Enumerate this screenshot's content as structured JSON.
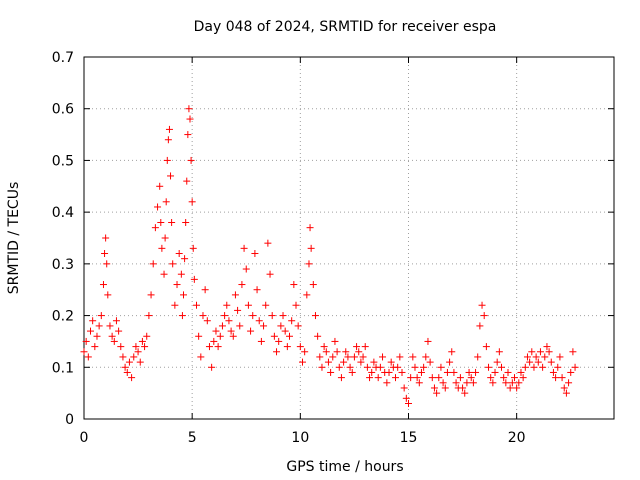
{
  "chart_data": {
    "type": "scatter",
    "title": "Day 048 of 2024, SRMTID for receiver espa",
    "xlabel": "GPS time / hours",
    "ylabel": "SRMTID / TECUs",
    "xlim": [
      0,
      24.5
    ],
    "ylim": [
      0,
      0.7
    ],
    "xticks": [
      0,
      5,
      10,
      15,
      20
    ],
    "yticks": [
      0,
      0.1,
      0.2,
      0.3,
      0.4,
      0.5,
      0.6,
      0.7
    ],
    "xtick_labels": [
      "0",
      "5",
      "10",
      "15",
      "20"
    ],
    "ytick_labels": [
      "0",
      "0.1",
      "0.2",
      "0.3",
      "0.4",
      "0.5",
      "0.6",
      "0.7"
    ],
    "grid": true,
    "marker": "plus",
    "color": "#ff0000",
    "series": [
      {
        "name": "SRMTID",
        "points": [
          [
            0.0,
            0.13
          ],
          [
            0.1,
            0.15
          ],
          [
            0.2,
            0.12
          ],
          [
            0.3,
            0.17
          ],
          [
            0.4,
            0.19
          ],
          [
            0.5,
            0.14
          ],
          [
            0.6,
            0.16
          ],
          [
            0.7,
            0.18
          ],
          [
            0.8,
            0.2
          ],
          [
            0.9,
            0.26
          ],
          [
            0.95,
            0.32
          ],
          [
            1.0,
            0.35
          ],
          [
            1.05,
            0.3
          ],
          [
            1.1,
            0.24
          ],
          [
            1.2,
            0.18
          ],
          [
            1.3,
            0.16
          ],
          [
            1.4,
            0.15
          ],
          [
            1.5,
            0.19
          ],
          [
            1.6,
            0.17
          ],
          [
            1.7,
            0.14
          ],
          [
            1.8,
            0.12
          ],
          [
            1.9,
            0.1
          ],
          [
            2.0,
            0.09
          ],
          [
            2.1,
            0.11
          ],
          [
            2.2,
            0.08
          ],
          [
            2.3,
            0.12
          ],
          [
            2.4,
            0.14
          ],
          [
            2.5,
            0.13
          ],
          [
            2.6,
            0.11
          ],
          [
            2.7,
            0.15
          ],
          [
            2.8,
            0.14
          ],
          [
            2.9,
            0.16
          ],
          [
            3.0,
            0.2
          ],
          [
            3.1,
            0.24
          ],
          [
            3.2,
            0.3
          ],
          [
            3.3,
            0.37
          ],
          [
            3.4,
            0.41
          ],
          [
            3.5,
            0.45
          ],
          [
            3.55,
            0.38
          ],
          [
            3.6,
            0.33
          ],
          [
            3.7,
            0.28
          ],
          [
            3.75,
            0.35
          ],
          [
            3.8,
            0.42
          ],
          [
            3.85,
            0.5
          ],
          [
            3.9,
            0.54
          ],
          [
            3.95,
            0.56
          ],
          [
            4.0,
            0.47
          ],
          [
            4.05,
            0.38
          ],
          [
            4.1,
            0.3
          ],
          [
            4.2,
            0.22
          ],
          [
            4.3,
            0.26
          ],
          [
            4.4,
            0.32
          ],
          [
            4.5,
            0.28
          ],
          [
            4.55,
            0.2
          ],
          [
            4.6,
            0.24
          ],
          [
            4.65,
            0.31
          ],
          [
            4.7,
            0.38
          ],
          [
            4.75,
            0.46
          ],
          [
            4.8,
            0.55
          ],
          [
            4.85,
            0.6
          ],
          [
            4.9,
            0.58
          ],
          [
            4.95,
            0.5
          ],
          [
            5.0,
            0.42
          ],
          [
            5.05,
            0.33
          ],
          [
            5.1,
            0.27
          ],
          [
            5.2,
            0.22
          ],
          [
            5.3,
            0.16
          ],
          [
            5.4,
            0.12
          ],
          [
            5.5,
            0.2
          ],
          [
            5.6,
            0.25
          ],
          [
            5.7,
            0.19
          ],
          [
            5.8,
            0.14
          ],
          [
            5.9,
            0.1
          ],
          [
            6.0,
            0.15
          ],
          [
            6.1,
            0.17
          ],
          [
            6.2,
            0.14
          ],
          [
            6.3,
            0.16
          ],
          [
            6.4,
            0.18
          ],
          [
            6.5,
            0.2
          ],
          [
            6.6,
            0.22
          ],
          [
            6.7,
            0.19
          ],
          [
            6.8,
            0.17
          ],
          [
            6.9,
            0.16
          ],
          [
            7.0,
            0.24
          ],
          [
            7.1,
            0.21
          ],
          [
            7.2,
            0.18
          ],
          [
            7.3,
            0.26
          ],
          [
            7.4,
            0.33
          ],
          [
            7.5,
            0.29
          ],
          [
            7.6,
            0.22
          ],
          [
            7.7,
            0.17
          ],
          [
            7.8,
            0.2
          ],
          [
            7.9,
            0.32
          ],
          [
            8.0,
            0.25
          ],
          [
            8.1,
            0.19
          ],
          [
            8.2,
            0.15
          ],
          [
            8.3,
            0.18
          ],
          [
            8.4,
            0.22
          ],
          [
            8.5,
            0.34
          ],
          [
            8.6,
            0.28
          ],
          [
            8.7,
            0.2
          ],
          [
            8.8,
            0.16
          ],
          [
            8.9,
            0.13
          ],
          [
            9.0,
            0.15
          ],
          [
            9.1,
            0.18
          ],
          [
            9.2,
            0.2
          ],
          [
            9.3,
            0.17
          ],
          [
            9.4,
            0.14
          ],
          [
            9.5,
            0.16
          ],
          [
            9.6,
            0.19
          ],
          [
            9.7,
            0.26
          ],
          [
            9.8,
            0.22
          ],
          [
            9.9,
            0.18
          ],
          [
            10.0,
            0.14
          ],
          [
            10.1,
            0.11
          ],
          [
            10.2,
            0.13
          ],
          [
            10.3,
            0.24
          ],
          [
            10.4,
            0.3
          ],
          [
            10.45,
            0.37
          ],
          [
            10.5,
            0.33
          ],
          [
            10.6,
            0.26
          ],
          [
            10.7,
            0.2
          ],
          [
            10.8,
            0.16
          ],
          [
            10.9,
            0.12
          ],
          [
            11.0,
            0.1
          ],
          [
            11.1,
            0.14
          ],
          [
            11.2,
            0.13
          ],
          [
            11.3,
            0.11
          ],
          [
            11.4,
            0.09
          ],
          [
            11.5,
            0.12
          ],
          [
            11.6,
            0.15
          ],
          [
            11.7,
            0.13
          ],
          [
            11.8,
            0.1
          ],
          [
            11.9,
            0.08
          ],
          [
            12.0,
            0.11
          ],
          [
            12.1,
            0.13
          ],
          [
            12.2,
            0.12
          ],
          [
            12.3,
            0.1
          ],
          [
            12.4,
            0.09
          ],
          [
            12.5,
            0.12
          ],
          [
            12.6,
            0.14
          ],
          [
            12.7,
            0.13
          ],
          [
            12.8,
            0.11
          ],
          [
            12.9,
            0.12
          ],
          [
            13.0,
            0.14
          ],
          [
            13.1,
            0.1
          ],
          [
            13.2,
            0.08
          ],
          [
            13.3,
            0.09
          ],
          [
            13.4,
            0.11
          ],
          [
            13.5,
            0.1
          ],
          [
            13.6,
            0.08
          ],
          [
            13.7,
            0.1
          ],
          [
            13.8,
            0.12
          ],
          [
            13.9,
            0.09
          ],
          [
            14.0,
            0.07
          ],
          [
            14.1,
            0.09
          ],
          [
            14.2,
            0.11
          ],
          [
            14.3,
            0.1
          ],
          [
            14.4,
            0.08
          ],
          [
            14.5,
            0.1
          ],
          [
            14.6,
            0.12
          ],
          [
            14.7,
            0.09
          ],
          [
            14.8,
            0.06
          ],
          [
            14.9,
            0.04
          ],
          [
            15.0,
            0.03
          ],
          [
            15.1,
            0.08
          ],
          [
            15.2,
            0.12
          ],
          [
            15.3,
            0.1
          ],
          [
            15.4,
            0.08
          ],
          [
            15.5,
            0.07
          ],
          [
            15.6,
            0.09
          ],
          [
            15.7,
            0.1
          ],
          [
            15.8,
            0.12
          ],
          [
            15.9,
            0.15
          ],
          [
            16.0,
            0.11
          ],
          [
            16.1,
            0.08
          ],
          [
            16.2,
            0.06
          ],
          [
            16.3,
            0.05
          ],
          [
            16.4,
            0.08
          ],
          [
            16.5,
            0.1
          ],
          [
            16.6,
            0.07
          ],
          [
            16.7,
            0.06
          ],
          [
            16.8,
            0.09
          ],
          [
            16.9,
            0.11
          ],
          [
            17.0,
            0.13
          ],
          [
            17.1,
            0.09
          ],
          [
            17.2,
            0.07
          ],
          [
            17.3,
            0.06
          ],
          [
            17.4,
            0.08
          ],
          [
            17.5,
            0.06
          ],
          [
            17.6,
            0.05
          ],
          [
            17.7,
            0.07
          ],
          [
            17.8,
            0.09
          ],
          [
            17.9,
            0.08
          ],
          [
            18.0,
            0.07
          ],
          [
            18.1,
            0.09
          ],
          [
            18.2,
            0.12
          ],
          [
            18.3,
            0.18
          ],
          [
            18.4,
            0.22
          ],
          [
            18.5,
            0.2
          ],
          [
            18.6,
            0.14
          ],
          [
            18.7,
            0.1
          ],
          [
            18.8,
            0.08
          ],
          [
            18.9,
            0.07
          ],
          [
            19.0,
            0.09
          ],
          [
            19.1,
            0.11
          ],
          [
            19.2,
            0.13
          ],
          [
            19.3,
            0.1
          ],
          [
            19.4,
            0.08
          ],
          [
            19.5,
            0.07
          ],
          [
            19.6,
            0.09
          ],
          [
            19.7,
            0.06
          ],
          [
            19.8,
            0.07
          ],
          [
            19.9,
            0.08
          ],
          [
            20.0,
            0.06
          ],
          [
            20.1,
            0.07
          ],
          [
            20.2,
            0.09
          ],
          [
            20.3,
            0.08
          ],
          [
            20.4,
            0.1
          ],
          [
            20.5,
            0.12
          ],
          [
            20.6,
            0.11
          ],
          [
            20.7,
            0.13
          ],
          [
            20.8,
            0.1
          ],
          [
            20.9,
            0.12
          ],
          [
            21.0,
            0.11
          ],
          [
            21.1,
            0.13
          ],
          [
            21.2,
            0.1
          ],
          [
            21.3,
            0.12
          ],
          [
            21.4,
            0.14
          ],
          [
            21.5,
            0.13
          ],
          [
            21.6,
            0.11
          ],
          [
            21.7,
            0.09
          ],
          [
            21.8,
            0.08
          ],
          [
            21.9,
            0.1
          ],
          [
            22.0,
            0.12
          ],
          [
            22.1,
            0.08
          ],
          [
            22.2,
            0.06
          ],
          [
            22.3,
            0.05
          ],
          [
            22.4,
            0.07
          ],
          [
            22.5,
            0.09
          ],
          [
            22.6,
            0.13
          ],
          [
            22.7,
            0.1
          ]
        ]
      }
    ]
  }
}
